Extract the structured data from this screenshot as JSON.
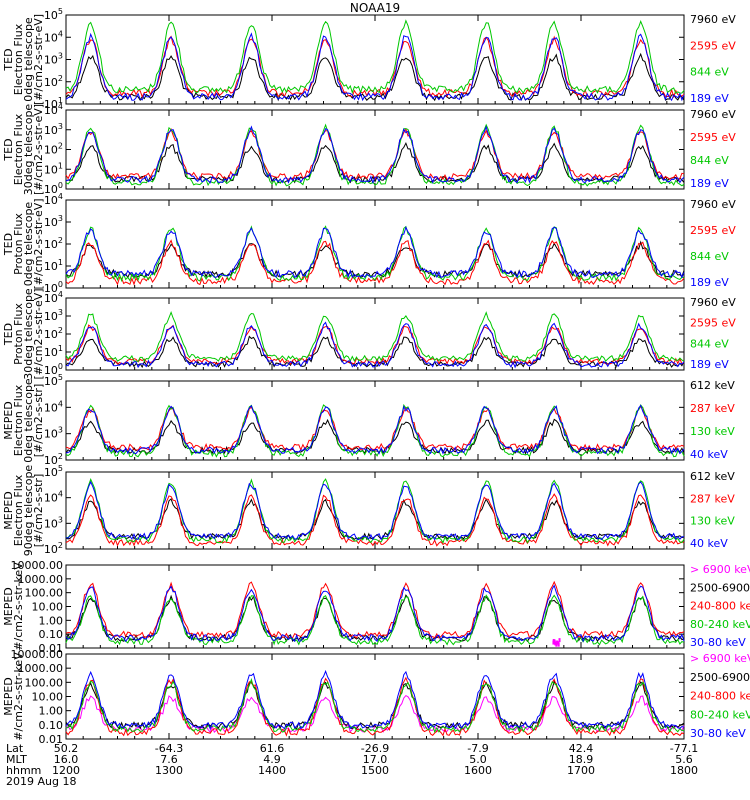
{
  "title": "NOAA19",
  "chart_data": {
    "type": "line",
    "x_range": [
      "12:00",
      "18:00"
    ],
    "panels": [
      {
        "id": "p1",
        "ylabel": [
          "TED",
          "Electron Flux",
          "0deg telescope",
          "[#/cm2-s-str-eV]"
        ],
        "ytick_labels": [
          "10^1",
          "10^2",
          "10^3",
          "10^4",
          "10^5"
        ],
        "ylim_log10": [
          1,
          5
        ],
        "legend": [
          {
            "label": "7960 eV",
            "color": "#000000"
          },
          {
            "label": "2595 eV",
            "color": "#ff0000"
          },
          {
            "label": "844 eV",
            "color": "#00c800"
          },
          {
            "label": "189 eV",
            "color": "#0000ff"
          }
        ]
      },
      {
        "id": "p2",
        "ylabel": [
          "TED",
          "Electron Flux",
          "30deg telescope",
          "[#/cm2-s-str-eV]"
        ],
        "ytick_labels": [
          "10^0",
          "10^1",
          "10^2",
          "10^3",
          "10^4"
        ],
        "ylim_log10": [
          0,
          4
        ],
        "legend": [
          {
            "label": "7960 eV",
            "color": "#000000"
          },
          {
            "label": "2595 eV",
            "color": "#ff0000"
          },
          {
            "label": "844 eV",
            "color": "#00c800"
          },
          {
            "label": "189 eV",
            "color": "#0000ff"
          }
        ]
      },
      {
        "id": "p3",
        "ylabel": [
          "TED",
          "Proton Flux",
          "0deg telescope",
          "[#/cm2-s-str-eV]"
        ],
        "ytick_labels": [
          "10^0",
          "10^1",
          "10^2",
          "10^3",
          "10^4"
        ],
        "ylim_log10": [
          0,
          4
        ],
        "legend": [
          {
            "label": "7960 eV",
            "color": "#000000"
          },
          {
            "label": "2595 eV",
            "color": "#ff0000"
          },
          {
            "label": "844 eV",
            "color": "#00c800"
          },
          {
            "label": "189 eV",
            "color": "#0000ff"
          }
        ]
      },
      {
        "id": "p4",
        "ylabel": [
          "TED",
          "Proton Flux",
          "30deg telescope",
          "[#/cm2-s-str-eV]"
        ],
        "ytick_labels": [
          "10^0",
          "10^1",
          "10^2",
          "10^3",
          "10^4"
        ],
        "ylim_log10": [
          0,
          4
        ],
        "legend": [
          {
            "label": "7960 eV",
            "color": "#000000"
          },
          {
            "label": "2595 eV",
            "color": "#ff0000"
          },
          {
            "label": "844 eV",
            "color": "#00c800"
          },
          {
            "label": "189 eV",
            "color": "#0000ff"
          }
        ]
      },
      {
        "id": "p5",
        "ylabel": [
          "MEPED",
          "Electron Flux",
          "0deg telescope",
          "[#/cm2-s-str]"
        ],
        "ytick_labels": [
          "10^2",
          "10^3",
          "10^4",
          "10^5"
        ],
        "ylim_log10": [
          2,
          5
        ],
        "legend": [
          {
            "label": "612 keV",
            "color": "#000000"
          },
          {
            "label": "287 keV",
            "color": "#ff0000"
          },
          {
            "label": "130 keV",
            "color": "#00c800"
          },
          {
            "label": "40 keV",
            "color": "#0000ff"
          }
        ]
      },
      {
        "id": "p6",
        "ylabel": [
          "MEPED",
          "Electron Flux",
          "90deg telescope",
          "[#/cm2-s-str]"
        ],
        "ytick_labels": [
          "10^2",
          "10^3",
          "10^4",
          "10^5"
        ],
        "ylim_log10": [
          2,
          5
        ],
        "legend": [
          {
            "label": "612 keV",
            "color": "#000000"
          },
          {
            "label": "287 keV",
            "color": "#ff0000"
          },
          {
            "label": "130 keV",
            "color": "#00c800"
          },
          {
            "label": "40 keV",
            "color": "#0000ff"
          }
        ]
      },
      {
        "id": "p7",
        "ylabel": [
          "MEPED",
          "#/cm2-s-str-keV"
        ],
        "ytick_labels": [
          "0.01",
          "0.10",
          "1.00",
          "10.00",
          "100.00",
          "1000.00",
          "10000.00"
        ],
        "ylim_log10": [
          -2,
          4
        ],
        "legend": [
          {
            "label": "> 6900 keV",
            "color": "#ff00ff"
          },
          {
            "label": "2500-6900",
            "color": "#000000"
          },
          {
            "label": "240-800 keV",
            "color": "#ff0000"
          },
          {
            "label": "80-240 keV",
            "color": "#00c800"
          },
          {
            "label": "30-80 keV",
            "color": "#0000ff"
          }
        ]
      },
      {
        "id": "p8",
        "ylabel": [
          "MEPED",
          "#/cm2-s-str-keV"
        ],
        "ytick_labels": [
          "0.01",
          "0.10",
          "1.00",
          "10.00",
          "100.00",
          "1000.00",
          "10000.00"
        ],
        "ylim_log10": [
          -2,
          4
        ],
        "legend": [
          {
            "label": "> 6900 keV",
            "color": "#ff00ff"
          },
          {
            "label": "2500-6900",
            "color": "#000000"
          },
          {
            "label": "240-800 keV",
            "color": "#ff0000"
          },
          {
            "label": "80-240 keV",
            "color": "#00c800"
          },
          {
            "label": "30-80 keV",
            "color": "#0000ff"
          }
        ]
      }
    ],
    "footer": {
      "row_labels": [
        "Lat",
        "MLT",
        "hhmm",
        "2019 Aug 18"
      ],
      "columns": [
        {
          "lat": "50.2",
          "mlt": "16.0",
          "hhmm": "1200"
        },
        {
          "lat": "-64.3",
          "mlt": "7.6",
          "hhmm": "1300"
        },
        {
          "lat": "61.6",
          "mlt": "4.9",
          "hhmm": "1400"
        },
        {
          "lat": "-26.9",
          "mlt": "17.0",
          "hhmm": "1500"
        },
        {
          "lat": "-7.9",
          "mlt": "5.0",
          "hhmm": "1600"
        },
        {
          "lat": "42.4",
          "mlt": "18.9",
          "hhmm": "1700"
        },
        {
          "lat": "-77.1",
          "mlt": "5.6",
          "hhmm": "1800"
        }
      ]
    }
  }
}
